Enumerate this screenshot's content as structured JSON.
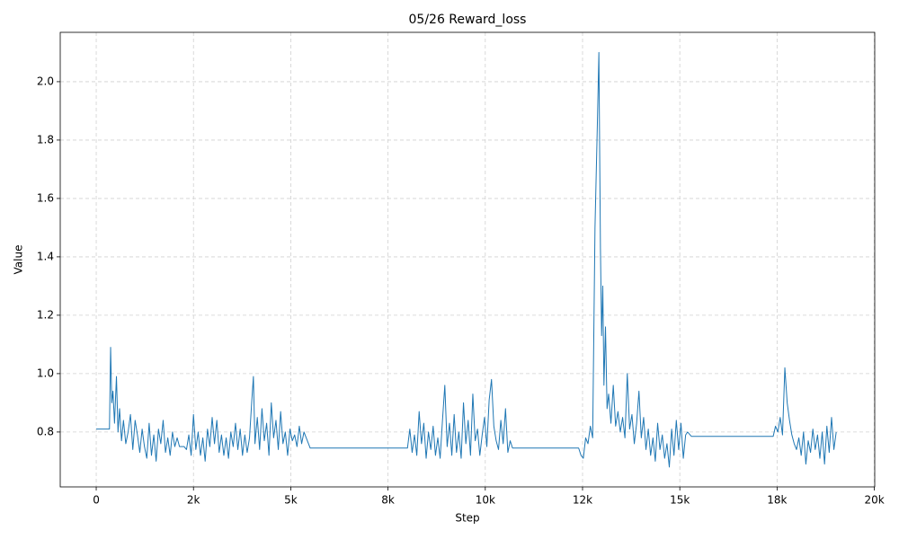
{
  "chart_data": {
    "type": "line",
    "title": "05/26  Reward_loss",
    "xlabel": "Step",
    "ylabel": "Value",
    "color": "#1f77b4",
    "grid": true,
    "xlim": [
      -925,
      20010
    ],
    "ylim": [
      0.612,
      2.169
    ],
    "xticks": [
      0,
      {
        "value": 2500,
        "label": "2k"
      },
      {
        "value": 5000,
        "label": "5k"
      },
      {
        "value": 7500,
        "label": "8k"
      },
      {
        "value": 10000,
        "label": "10k"
      },
      {
        "value": 12500,
        "label": "12k"
      },
      {
        "value": 15000,
        "label": "15k"
      },
      {
        "value": 17500,
        "label": "18k"
      },
      {
        "value": 20000,
        "label": "20k"
      }
    ],
    "yticks": [
      0.8,
      {
        "value": 1.0,
        "label": "1.0"
      },
      1.2,
      1.4,
      1.6,
      1.8,
      {
        "value": 2.0,
        "label": "2.0"
      }
    ],
    "x": [
      0,
      340,
      370,
      400,
      430,
      470,
      520,
      560,
      600,
      650,
      700,
      760,
      820,
      880,
      940,
      1000,
      1060,
      1120,
      1180,
      1240,
      1300,
      1360,
      1420,
      1480,
      1540,
      1600,
      1660,
      1720,
      1780,
      1840,
      1900,
      1960,
      2020,
      2080,
      2140,
      2200,
      2260,
      2320,
      2380,
      2440,
      2500,
      2560,
      2620,
      2680,
      2740,
      2800,
      2860,
      2920,
      2980,
      3040,
      3100,
      3160,
      3220,
      3280,
      3340,
      3400,
      3460,
      3520,
      3580,
      3640,
      3700,
      3760,
      3820,
      3880,
      3940,
      4000,
      4040,
      4080,
      4140,
      4200,
      4260,
      4320,
      4380,
      4440,
      4500,
      4560,
      4620,
      4680,
      4740,
      4800,
      4860,
      4920,
      4980,
      5040,
      5100,
      5160,
      5220,
      5280,
      5340,
      5500,
      8000,
      8060,
      8120,
      8180,
      8240,
      8300,
      8360,
      8420,
      8480,
      8540,
      8600,
      8660,
      8720,
      8780,
      8840,
      8900,
      8960,
      9020,
      9080,
      9140,
      9200,
      9260,
      9320,
      9380,
      9440,
      9500,
      9560,
      9620,
      9680,
      9740,
      9800,
      9860,
      9920,
      9980,
      10040,
      10100,
      10160,
      10220,
      10280,
      10340,
      10400,
      10460,
      10520,
      10580,
      10640,
      10700,
      10760,
      12400,
      12460,
      12520,
      12580,
      12640,
      12700,
      12760,
      12820,
      12880,
      12920,
      12960,
      12990,
      13020,
      13050,
      13090,
      13130,
      13170,
      13230,
      13290,
      13350,
      13410,
      13470,
      13530,
      13590,
      13650,
      13710,
      13770,
      13830,
      13890,
      13950,
      14010,
      14070,
      14130,
      14190,
      14250,
      14310,
      14370,
      14430,
      14490,
      14550,
      14610,
      14670,
      14730,
      14790,
      14850,
      14910,
      14970,
      15030,
      15090,
      15150,
      15200,
      15300,
      17400,
      17460,
      17520,
      17580,
      17640,
      17700,
      17760,
      17820,
      17880,
      17940,
      18000,
      18060,
      18120,
      18180,
      18240,
      18300,
      18360,
      18420,
      18480,
      18540,
      18600,
      18660,
      18720,
      18780,
      18840,
      18900,
      18960,
      19020
    ],
    "values": [
      0.81,
      0.81,
      1.09,
      0.9,
      0.94,
      0.83,
      0.99,
      0.8,
      0.88,
      0.77,
      0.84,
      0.76,
      0.8,
      0.86,
      0.74,
      0.84,
      0.79,
      0.73,
      0.81,
      0.75,
      0.71,
      0.83,
      0.72,
      0.79,
      0.7,
      0.81,
      0.76,
      0.84,
      0.73,
      0.78,
      0.72,
      0.8,
      0.75,
      0.78,
      0.75,
      0.75,
      0.75,
      0.74,
      0.79,
      0.72,
      0.86,
      0.74,
      0.8,
      0.72,
      0.78,
      0.7,
      0.81,
      0.75,
      0.85,
      0.76,
      0.84,
      0.73,
      0.79,
      0.72,
      0.78,
      0.71,
      0.8,
      0.75,
      0.83,
      0.74,
      0.81,
      0.72,
      0.79,
      0.73,
      0.78,
      0.91,
      0.99,
      0.76,
      0.85,
      0.74,
      0.88,
      0.77,
      0.83,
      0.72,
      0.9,
      0.78,
      0.84,
      0.74,
      0.87,
      0.76,
      0.8,
      0.72,
      0.81,
      0.77,
      0.79,
      0.75,
      0.82,
      0.76,
      0.8,
      0.745,
      0.745,
      0.81,
      0.73,
      0.79,
      0.72,
      0.87,
      0.76,
      0.83,
      0.71,
      0.8,
      0.74,
      0.82,
      0.72,
      0.78,
      0.71,
      0.84,
      0.96,
      0.75,
      0.83,
      0.72,
      0.86,
      0.73,
      0.8,
      0.71,
      0.9,
      0.76,
      0.84,
      0.72,
      0.93,
      0.77,
      0.81,
      0.72,
      0.79,
      0.85,
      0.75,
      0.91,
      0.98,
      0.82,
      0.77,
      0.74,
      0.84,
      0.76,
      0.88,
      0.73,
      0.77,
      0.745,
      0.745,
      0.745,
      0.72,
      0.71,
      0.78,
      0.76,
      0.82,
      0.78,
      1.5,
      1.85,
      2.1,
      1.43,
      1.13,
      1.3,
      0.96,
      1.16,
      0.88,
      0.93,
      0.83,
      0.96,
      0.82,
      0.87,
      0.8,
      0.85,
      0.78,
      1.0,
      0.81,
      0.86,
      0.76,
      0.83,
      0.94,
      0.78,
      0.85,
      0.74,
      0.81,
      0.72,
      0.78,
      0.7,
      0.83,
      0.74,
      0.79,
      0.71,
      0.76,
      0.68,
      0.81,
      0.72,
      0.84,
      0.74,
      0.83,
      0.71,
      0.79,
      0.8,
      0.785,
      0.785,
      0.82,
      0.8,
      0.85,
      0.79,
      1.02,
      0.9,
      0.84,
      0.79,
      0.76,
      0.74,
      0.78,
      0.72,
      0.8,
      0.69,
      0.77,
      0.73,
      0.81,
      0.74,
      0.79,
      0.71,
      0.8,
      0.69,
      0.82,
      0.73,
      0.85,
      0.74,
      0.8
    ]
  }
}
